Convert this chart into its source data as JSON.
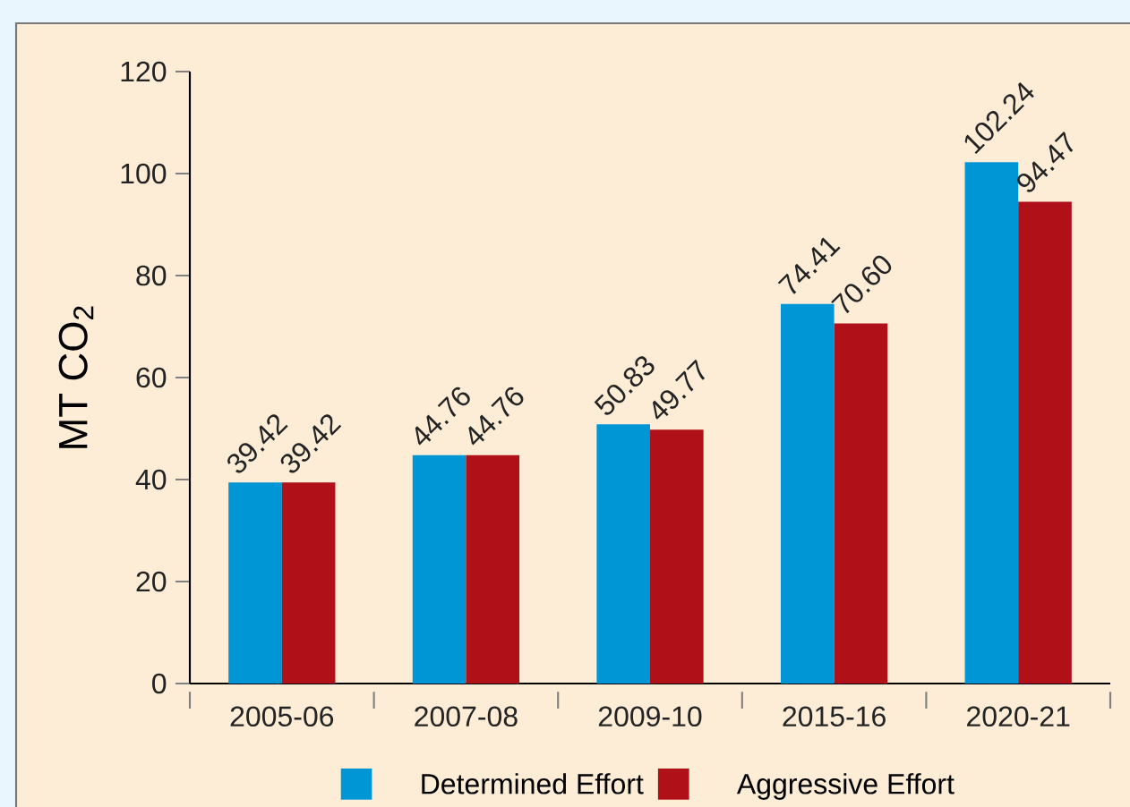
{
  "chart_data": {
    "type": "bar",
    "ylabel": "MT CO$_{2}$",
    "categories": [
      "2005-06",
      "2007-08",
      "2009-10",
      "2015-16",
      "2020-21"
    ],
    "series": [
      {
        "name": "Determined Effort",
        "color": "#0096d6",
        "values": [
          39.42,
          44.76,
          50.83,
          74.41,
          102.24
        ],
        "value_labels": [
          "39.42",
          "44.76",
          "50.83",
          "74.41",
          "102.24"
        ]
      },
      {
        "name": "Aggressive Effort",
        "color": "#b01018",
        "values": [
          39.42,
          44.76,
          49.77,
          70.6,
          94.47
        ],
        "value_labels": [
          "39.42",
          "44.76",
          "49.77",
          "70.60",
          "94.47"
        ]
      }
    ],
    "ylim": [
      0,
      120
    ],
    "yticks": [
      0,
      20,
      40,
      60,
      80,
      100,
      120
    ],
    "grid": false,
    "legend": "bottom"
  }
}
